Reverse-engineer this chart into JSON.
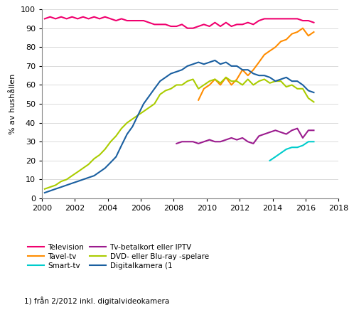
{
  "ylabel": "% av hushållen",
  "footnote": "1) från 2/2012 inkl. digitalvideokamera",
  "ylim": [
    0,
    100
  ],
  "xlim": [
    2000,
    2018
  ],
  "xticks": [
    2000,
    2002,
    2004,
    2006,
    2008,
    2010,
    2012,
    2014,
    2016,
    2018
  ],
  "yticks": [
    0,
    10,
    20,
    30,
    40,
    50,
    60,
    70,
    80,
    90,
    100
  ],
  "colors": {
    "Television": "#F0006E",
    "Tavel-tv": "#FF8C00",
    "Smart-tv": "#00CCCC",
    "Tv-betalkort eller IPTV": "#9B1B8E",
    "DVD- eller Blu-ray -spelare": "#AACC00",
    "Digitalkamera (1": "#1A5FA0"
  },
  "legend_order": [
    "Television",
    "Tavel-tv",
    "Smart-tv",
    "Tv-betalkort eller IPTV",
    "DVD- eller Blu-ray -spelare",
    "Digitalkamera (1"
  ],
  "series": {
    "Television": {
      "x": [
        2000.17,
        2000.5,
        2000.83,
        2001.17,
        2001.5,
        2001.83,
        2002.17,
        2002.5,
        2002.83,
        2003.17,
        2003.5,
        2003.83,
        2004.17,
        2004.5,
        2004.83,
        2005.17,
        2005.5,
        2005.83,
        2006.17,
        2006.5,
        2006.83,
        2007.17,
        2007.5,
        2007.83,
        2008.17,
        2008.5,
        2008.83,
        2009.17,
        2009.5,
        2009.83,
        2010.17,
        2010.5,
        2010.83,
        2011.17,
        2011.5,
        2011.83,
        2012.17,
        2012.5,
        2012.83,
        2013.17,
        2013.5,
        2013.83,
        2014.17,
        2014.5,
        2014.83,
        2015.17,
        2015.5,
        2015.83,
        2016.17,
        2016.5
      ],
      "y": [
        95,
        96,
        95,
        96,
        95,
        96,
        95,
        96,
        95,
        96,
        95,
        96,
        95,
        94,
        95,
        94,
        94,
        94,
        94,
        93,
        92,
        92,
        92,
        91,
        91,
        92,
        90,
        90,
        91,
        92,
        91,
        93,
        91,
        93,
        91,
        92,
        92,
        93,
        92,
        94,
        95,
        95,
        95,
        95,
        95,
        95,
        95,
        94,
        94,
        93
      ]
    },
    "Tavel-tv": {
      "x": [
        2009.5,
        2009.83,
        2010.17,
        2010.5,
        2010.83,
        2011.17,
        2011.5,
        2011.83,
        2012.17,
        2012.5,
        2012.83,
        2013.17,
        2013.5,
        2013.83,
        2014.17,
        2014.5,
        2014.83,
        2015.17,
        2015.5,
        2015.83,
        2016.17,
        2016.5
      ],
      "y": [
        52,
        58,
        60,
        63,
        60,
        64,
        60,
        63,
        68,
        65,
        68,
        72,
        76,
        78,
        80,
        83,
        84,
        87,
        88,
        90,
        86,
        88
      ]
    },
    "Smart-tv": {
      "x": [
        2013.83,
        2014.17,
        2014.5,
        2014.83,
        2015.17,
        2015.5,
        2015.83,
        2016.17,
        2016.5
      ],
      "y": [
        20,
        22,
        24,
        26,
        27,
        27,
        28,
        30,
        30
      ]
    },
    "Tv-betalkort eller IPTV": {
      "x": [
        2008.17,
        2008.5,
        2008.83,
        2009.17,
        2009.5,
        2009.83,
        2010.17,
        2010.5,
        2010.83,
        2011.17,
        2011.5,
        2011.83,
        2012.17,
        2012.5,
        2012.83,
        2013.17,
        2013.5,
        2013.83,
        2014.17,
        2014.5,
        2014.83,
        2015.17,
        2015.5,
        2015.83,
        2016.17,
        2016.5
      ],
      "y": [
        29,
        30,
        30,
        30,
        29,
        30,
        31,
        30,
        30,
        31,
        32,
        31,
        32,
        30,
        29,
        33,
        34,
        35,
        36,
        35,
        34,
        36,
        37,
        32,
        36,
        36
      ]
    },
    "DVD- eller Blu-ray -spelare": {
      "x": [
        2000.17,
        2000.5,
        2000.83,
        2001.17,
        2001.5,
        2001.83,
        2002.17,
        2002.5,
        2002.83,
        2003.17,
        2003.5,
        2003.83,
        2004.17,
        2004.5,
        2004.83,
        2005.17,
        2005.5,
        2005.83,
        2006.17,
        2006.5,
        2006.83,
        2007.17,
        2007.5,
        2007.83,
        2008.17,
        2008.5,
        2008.83,
        2009.17,
        2009.5,
        2009.83,
        2010.17,
        2010.5,
        2010.83,
        2011.17,
        2011.5,
        2011.83,
        2012.17,
        2012.5,
        2012.83,
        2013.17,
        2013.5,
        2013.83,
        2014.17,
        2014.5,
        2014.83,
        2015.17,
        2015.5,
        2015.83,
        2016.17,
        2016.5
      ],
      "y": [
        5,
        6,
        7,
        9,
        10,
        12,
        14,
        16,
        18,
        21,
        23,
        26,
        30,
        33,
        37,
        40,
        42,
        44,
        46,
        48,
        50,
        55,
        57,
        58,
        60,
        60,
        62,
        63,
        58,
        60,
        62,
        63,
        61,
        64,
        62,
        62,
        60,
        63,
        60,
        62,
        63,
        61,
        62,
        62,
        59,
        60,
        58,
        58,
        53,
        51
      ]
    },
    "Digitalkamera (1": {
      "x": [
        2000.17,
        2000.5,
        2000.83,
        2001.17,
        2001.5,
        2001.83,
        2002.17,
        2002.5,
        2002.83,
        2003.17,
        2003.5,
        2003.83,
        2004.17,
        2004.5,
        2004.83,
        2005.17,
        2005.5,
        2005.83,
        2006.17,
        2006.5,
        2006.83,
        2007.17,
        2007.5,
        2007.83,
        2008.17,
        2008.5,
        2008.83,
        2009.17,
        2009.5,
        2009.83,
        2010.17,
        2010.5,
        2010.83,
        2011.17,
        2011.5,
        2011.83,
        2012.17,
        2012.5,
        2012.83,
        2013.17,
        2013.5,
        2013.83,
        2014.17,
        2014.5,
        2014.83,
        2015.17,
        2015.5,
        2015.83,
        2016.17,
        2016.5
      ],
      "y": [
        3,
        4,
        5,
        6,
        7,
        8,
        9,
        10,
        11,
        12,
        14,
        16,
        19,
        22,
        28,
        34,
        38,
        44,
        50,
        54,
        58,
        62,
        64,
        66,
        67,
        68,
        70,
        71,
        72,
        71,
        72,
        73,
        71,
        72,
        70,
        70,
        68,
        68,
        66,
        65,
        65,
        64,
        62,
        63,
        64,
        62,
        62,
        60,
        57,
        56
      ]
    }
  }
}
